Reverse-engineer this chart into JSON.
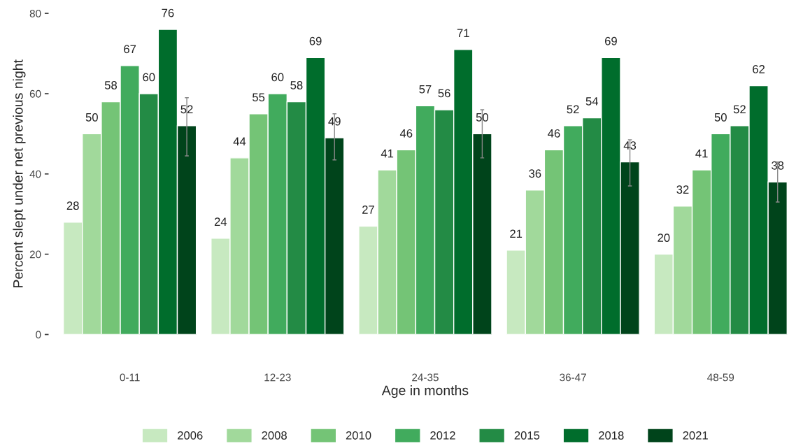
{
  "chart_data": {
    "type": "bar",
    "xlabel": "Age in months",
    "ylabel": "Percent slept under net previous night",
    "categories": [
      "0-11",
      "12-23",
      "24-35",
      "36-47",
      "48-59"
    ],
    "series": [
      {
        "name": "2006",
        "color": "#c7e9c0",
        "values": [
          28,
          24,
          27,
          21,
          20
        ]
      },
      {
        "name": "2008",
        "color": "#a1d99b",
        "values": [
          50,
          44,
          41,
          36,
          32
        ]
      },
      {
        "name": "2010",
        "color": "#74c476",
        "values": [
          58,
          55,
          46,
          46,
          41
        ]
      },
      {
        "name": "2012",
        "color": "#41ab5d",
        "values": [
          67,
          60,
          57,
          52,
          50
        ]
      },
      {
        "name": "2015",
        "color": "#238b45",
        "values": [
          60,
          58,
          56,
          54,
          52
        ]
      },
      {
        "name": "2018",
        "color": "#006d2c",
        "values": [
          76,
          69,
          71,
          69,
          62
        ]
      },
      {
        "name": "2021",
        "color": "#00441b",
        "values": [
          52,
          49,
          50,
          43,
          38
        ],
        "errors": [
          [
            44.5,
            59
          ],
          [
            43.5,
            55
          ],
          [
            44,
            56
          ],
          [
            37,
            48.5
          ],
          [
            33,
            43
          ]
        ]
      }
    ],
    "ylim": [
      0,
      80
    ],
    "yticks": [
      0,
      20,
      40,
      60,
      80
    ],
    "grid": false,
    "legend": "bottom",
    "data_labels": true
  }
}
